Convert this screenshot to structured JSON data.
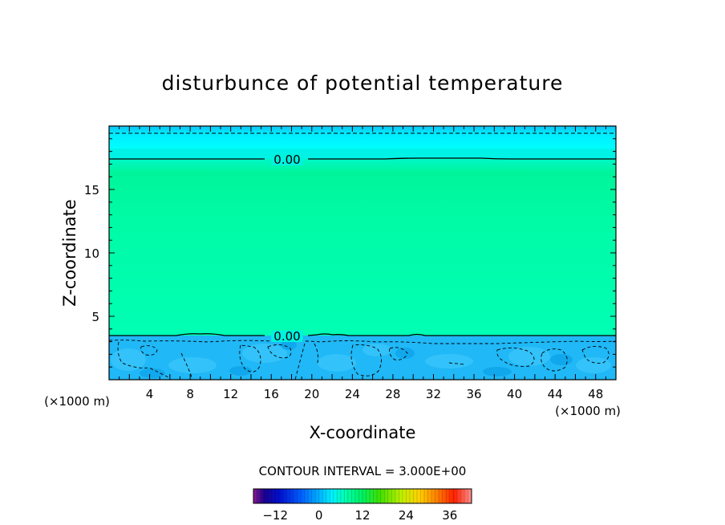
{
  "chart_data": {
    "type": "heatmap",
    "title": "disturbunce of potential temperature",
    "xlabel": "X-coordinate",
    "ylabel": "Z-coordinate",
    "x_unit": "(×1000 m)",
    "y_unit": "(×1000 m)",
    "xlim": [
      0,
      50
    ],
    "ylim": [
      0,
      20
    ],
    "x_ticks": [
      4,
      8,
      12,
      16,
      20,
      24,
      28,
      32,
      36,
      40,
      44,
      48
    ],
    "y_ticks": [
      5,
      10,
      15
    ],
    "contour_labels": [
      {
        "text": "0.00",
        "x": 16.5,
        "z": 17.3
      },
      {
        "text": "0.00",
        "x": 16.5,
        "z": 3.5
      }
    ],
    "contour_interval_text": "CONTOUR INTERVAL = 3.000E+00",
    "colorbar": {
      "min": -18,
      "max": 42,
      "ticks": [
        -12,
        0,
        12,
        24,
        36
      ],
      "tick_labels": [
        "−12",
        "0",
        "12",
        "24",
        "36"
      ]
    },
    "field_bands": [
      {
        "z_from": 19.0,
        "z_to": 20.0,
        "value": -2,
        "color": "#14c0f6"
      },
      {
        "z_from": 18.0,
        "z_to": 19.0,
        "value": -0.5,
        "color": "#00ffff"
      },
      {
        "z_from": 17.3,
        "z_to": 18.0,
        "value": 0,
        "color": "#00f8e8"
      },
      {
        "z_from": 3.5,
        "z_to": 17.3,
        "value": 1,
        "color": "#00ffaa"
      },
      {
        "z_from": 0.0,
        "z_to": 3.5,
        "value": -2,
        "color": "#22b8f8"
      }
    ]
  }
}
